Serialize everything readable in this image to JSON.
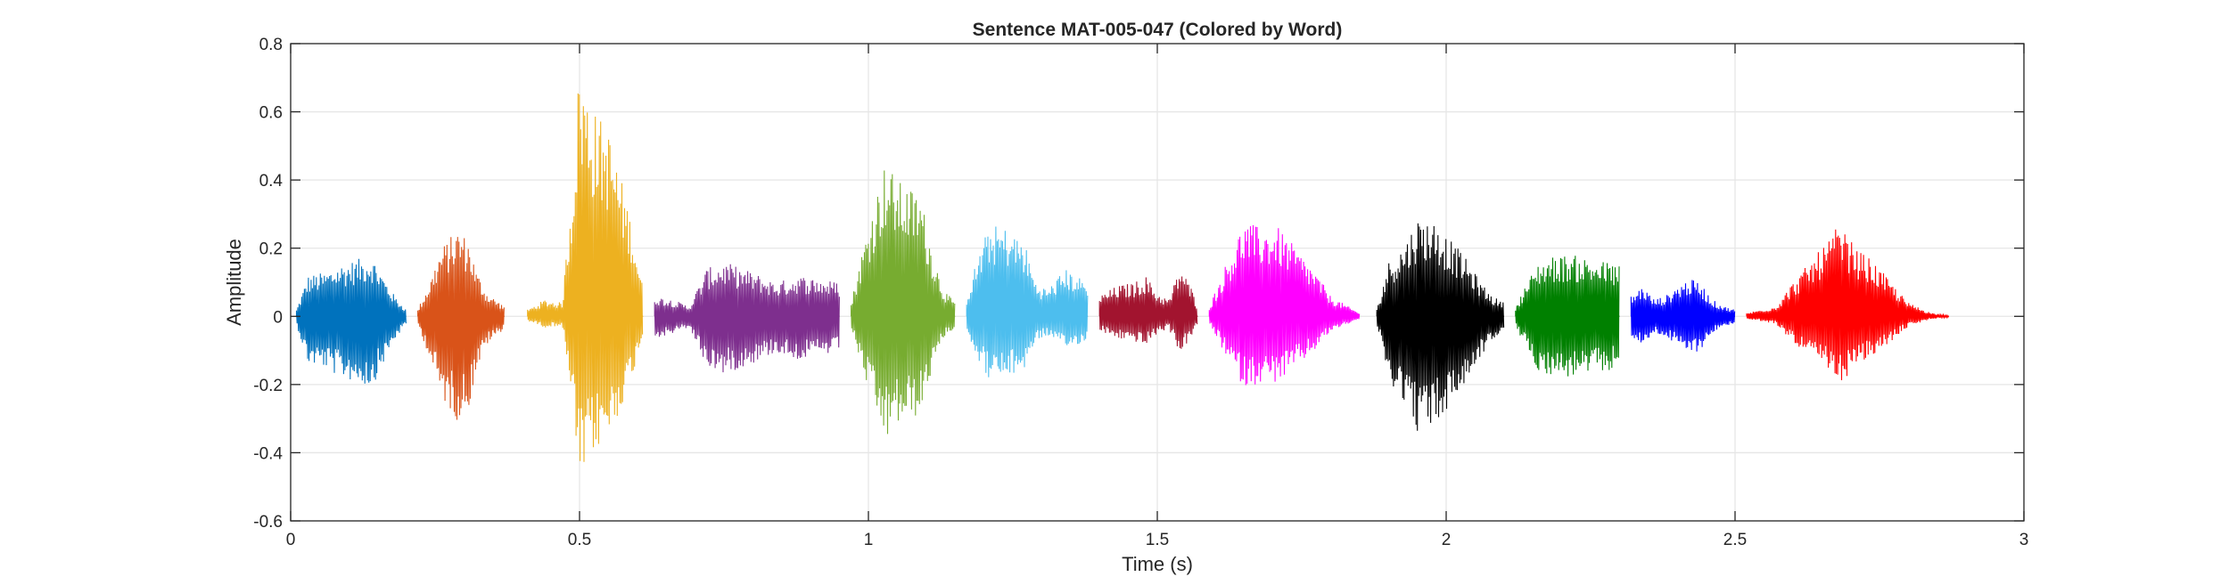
{
  "chart_data": {
    "type": "line",
    "title": "Sentence MAT-005-047 (Colored by Word)",
    "xlabel": "Time (s)",
    "ylabel": "Amplitude",
    "xlim": [
      0,
      3
    ],
    "ylim": [
      -0.6,
      0.8
    ],
    "xticks": [
      0,
      0.5,
      1,
      1.5,
      2,
      2.5,
      3
    ],
    "xtick_labels": [
      "0",
      "0.5",
      "1",
      "1.5",
      "2",
      "2.5",
      "3"
    ],
    "yticks": [
      -0.6,
      -0.4,
      -0.2,
      0,
      0.2,
      0.4,
      0.6,
      0.8
    ],
    "ytick_labels": [
      "-0.6",
      "-0.4",
      "-0.2",
      "0",
      "0.2",
      "0.4",
      "0.6",
      "0.8"
    ],
    "grid": true,
    "box": true,
    "series": [
      {
        "color": "#0072BD",
        "start": 0.01,
        "end": 0.2,
        "envelope": [
          [
            0.01,
            0.02
          ],
          [
            0.03,
            0.12
          ],
          [
            0.06,
            0.13
          ],
          [
            0.08,
            0.15
          ],
          [
            0.1,
            0.16
          ],
          [
            0.12,
            0.17
          ],
          [
            0.14,
            0.18
          ],
          [
            0.16,
            0.12
          ],
          [
            0.18,
            0.06
          ],
          [
            0.2,
            0.02
          ]
        ],
        "max": 0.18,
        "min": -0.21
      },
      {
        "color": "#D95319",
        "start": 0.22,
        "end": 0.37,
        "envelope": [
          [
            0.22,
            0.02
          ],
          [
            0.24,
            0.1
          ],
          [
            0.26,
            0.2
          ],
          [
            0.28,
            0.24
          ],
          [
            0.29,
            0.26
          ],
          [
            0.31,
            0.22
          ],
          [
            0.32,
            0.14
          ],
          [
            0.34,
            0.07
          ],
          [
            0.37,
            0.03
          ]
        ],
        "max": 0.26,
        "min": -0.31
      },
      {
        "color": "#EDB120",
        "start": 0.41,
        "end": 0.61,
        "envelope": [
          [
            0.41,
            0.02
          ],
          [
            0.44,
            0.05
          ],
          [
            0.47,
            0.04
          ],
          [
            0.49,
            0.45
          ],
          [
            0.5,
            0.76
          ],
          [
            0.52,
            0.62
          ],
          [
            0.55,
            0.55
          ],
          [
            0.57,
            0.42
          ],
          [
            0.59,
            0.28
          ],
          [
            0.61,
            0.08
          ]
        ],
        "max": 0.76,
        "min": -0.5
      },
      {
        "color": "#7E2F8E",
        "start": 0.63,
        "end": 0.95,
        "envelope": [
          [
            0.63,
            0.06
          ],
          [
            0.66,
            0.05
          ],
          [
            0.69,
            0.03
          ],
          [
            0.72,
            0.14
          ],
          [
            0.75,
            0.16
          ],
          [
            0.8,
            0.13
          ],
          [
            0.84,
            0.1
          ],
          [
            0.88,
            0.12
          ],
          [
            0.92,
            0.11
          ],
          [
            0.95,
            0.1
          ]
        ],
        "max": 0.16,
        "min": -0.17
      },
      {
        "color": "#77AC30",
        "start": 0.97,
        "end": 1.15,
        "envelope": [
          [
            0.97,
            0.04
          ],
          [
            0.99,
            0.2
          ],
          [
            1.01,
            0.34
          ],
          [
            1.03,
            0.46
          ],
          [
            1.05,
            0.4
          ],
          [
            1.07,
            0.38
          ],
          [
            1.09,
            0.36
          ],
          [
            1.11,
            0.2
          ],
          [
            1.13,
            0.08
          ],
          [
            1.15,
            0.04
          ]
        ],
        "max": 0.46,
        "min": -0.37
      },
      {
        "color": "#4DBEEE",
        "start": 1.17,
        "end": 1.38,
        "envelope": [
          [
            1.17,
            0.06
          ],
          [
            1.19,
            0.18
          ],
          [
            1.21,
            0.27
          ],
          [
            1.24,
            0.26
          ],
          [
            1.27,
            0.22
          ],
          [
            1.29,
            0.1
          ],
          [
            1.31,
            0.08
          ],
          [
            1.34,
            0.14
          ],
          [
            1.36,
            0.12
          ],
          [
            1.38,
            0.1
          ]
        ],
        "max": 0.27,
        "min": -0.19
      },
      {
        "color": "#A2142F",
        "start": 1.4,
        "end": 1.57,
        "envelope": [
          [
            1.4,
            0.06
          ],
          [
            1.43,
            0.09
          ],
          [
            1.46,
            0.1
          ],
          [
            1.48,
            0.12
          ],
          [
            1.5,
            0.07
          ],
          [
            1.52,
            0.05
          ],
          [
            1.54,
            0.15
          ],
          [
            1.56,
            0.08
          ],
          [
            1.57,
            0.03
          ]
        ],
        "max": 0.15,
        "min": -0.11
      },
      {
        "color": "#FF00FF",
        "start": 1.59,
        "end": 1.85,
        "envelope": [
          [
            1.59,
            0.03
          ],
          [
            1.62,
            0.16
          ],
          [
            1.65,
            0.28
          ],
          [
            1.68,
            0.26
          ],
          [
            1.71,
            0.26
          ],
          [
            1.74,
            0.2
          ],
          [
            1.77,
            0.14
          ],
          [
            1.8,
            0.06
          ],
          [
            1.83,
            0.03
          ],
          [
            1.85,
            0.01
          ]
        ],
        "max": 0.28,
        "min": -0.21
      },
      {
        "color": "#000000",
        "start": 1.88,
        "end": 2.1,
        "envelope": [
          [
            1.88,
            0.02
          ],
          [
            1.9,
            0.16
          ],
          [
            1.93,
            0.22
          ],
          [
            1.95,
            0.29
          ],
          [
            1.98,
            0.28
          ],
          [
            2.0,
            0.24
          ],
          [
            2.03,
            0.18
          ],
          [
            2.06,
            0.1
          ],
          [
            2.08,
            0.06
          ],
          [
            2.1,
            0.04
          ]
        ],
        "max": 0.3,
        "min": -0.35
      },
      {
        "color": "#008000",
        "start": 2.12,
        "end": 2.3,
        "envelope": [
          [
            2.12,
            0.03
          ],
          [
            2.14,
            0.1
          ],
          [
            2.16,
            0.16
          ],
          [
            2.19,
            0.18
          ],
          [
            2.22,
            0.18
          ],
          [
            2.25,
            0.17
          ],
          [
            2.28,
            0.16
          ],
          [
            2.3,
            0.15
          ]
        ],
        "max": 0.18,
        "min": -0.18
      },
      {
        "color": "#0000FF",
        "start": 2.32,
        "end": 2.5,
        "envelope": [
          [
            2.32,
            0.06
          ],
          [
            2.34,
            0.09
          ],
          [
            2.36,
            0.05
          ],
          [
            2.38,
            0.06
          ],
          [
            2.4,
            0.09
          ],
          [
            2.42,
            0.11
          ],
          [
            2.44,
            0.1
          ],
          [
            2.46,
            0.05
          ],
          [
            2.48,
            0.03
          ],
          [
            2.5,
            0.02
          ]
        ],
        "max": 0.11,
        "min": -0.11
      },
      {
        "color": "#FF0000",
        "start": 2.52,
        "end": 2.87,
        "envelope": [
          [
            2.52,
            0.01
          ],
          [
            2.57,
            0.03
          ],
          [
            2.6,
            0.1
          ],
          [
            2.63,
            0.16
          ],
          [
            2.66,
            0.22
          ],
          [
            2.68,
            0.27
          ],
          [
            2.71,
            0.2
          ],
          [
            2.74,
            0.16
          ],
          [
            2.77,
            0.1
          ],
          [
            2.8,
            0.04
          ],
          [
            2.84,
            0.01
          ],
          [
            2.87,
            0.003
          ]
        ],
        "max": 0.27,
        "min": -0.2
      }
    ]
  }
}
